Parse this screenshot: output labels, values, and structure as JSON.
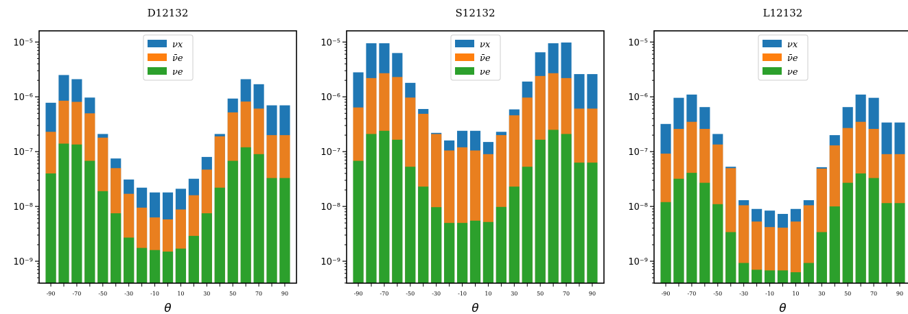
{
  "chart_data": [
    {
      "type": "bar",
      "title": "D12132",
      "xlabel": "θ",
      "ylabel": "",
      "yscale": "log",
      "ylim": [
        4e-10,
        1.6e-05
      ],
      "x": [
        -90,
        -80,
        -70,
        -60,
        -50,
        -40,
        -30,
        -20,
        -10,
        0,
        10,
        20,
        30,
        40,
        50,
        60,
        70,
        80,
        90
      ],
      "xtick_labels": [
        "-90",
        "-70",
        "-50",
        "-30",
        "-10",
        "10",
        "30",
        "50",
        "70",
        "90"
      ],
      "ytick_labels": [
        "10⁻⁹",
        "10⁻⁸",
        "10⁻⁷",
        "10⁻⁶",
        "10⁻⁵"
      ],
      "legend_position": "upper center",
      "series": [
        {
          "name": "νx",
          "color": "#1f77b4",
          "values": [
            7.8e-07,
            2.5e-06,
            2.1e-06,
            9.7e-07,
            2.1e-07,
            7.5e-08,
            3.1e-08,
            2.2e-08,
            1.8e-08,
            1.8e-08,
            2.1e-08,
            3.2e-08,
            8e-08,
            2.1e-07,
            9.3e-07,
            2.1e-06,
            1.7e-06,
            7e-07,
            7e-07
          ]
        },
        {
          "name": "ν̄e",
          "color": "#ff7f0e",
          "values": [
            2.3e-07,
            8.5e-07,
            8.1e-07,
            5e-07,
            1.8e-07,
            5e-08,
            1.7e-08,
            9.5e-09,
            6.3e-09,
            5.8e-09,
            8.8e-09,
            1.6e-08,
            4.7e-08,
            1.9e-07,
            5.2e-07,
            8.2e-07,
            6.1e-07,
            2e-07,
            2e-07
          ]
        },
        {
          "name": "νe",
          "color": "#2ca02c",
          "values": [
            4e-08,
            1.4e-07,
            1.35e-07,
            6.8e-08,
            1.9e-08,
            7.5e-09,
            2.7e-09,
            1.75e-09,
            1.6e-09,
            1.5e-09,
            1.7e-09,
            2.9e-09,
            7.5e-09,
            2.2e-08,
            6.8e-08,
            1.2e-07,
            9e-08,
            3.3e-08,
            3.3e-08
          ]
        }
      ]
    },
    {
      "type": "bar",
      "title": "S12132",
      "xlabel": "θ",
      "ylabel": "",
      "yscale": "log",
      "ylim": [
        4e-10,
        1.6e-05
      ],
      "x": [
        -90,
        -80,
        -70,
        -60,
        -50,
        -40,
        -30,
        -20,
        -10,
        0,
        10,
        20,
        30,
        40,
        50,
        60,
        70,
        80,
        90
      ],
      "xtick_labels": [
        "-90",
        "-70",
        "-50",
        "-30",
        "-10",
        "10",
        "30",
        "50",
        "70",
        "90"
      ],
      "ytick_labels": [
        "10⁻⁹",
        "10⁻⁸",
        "10⁻⁷",
        "10⁻⁶",
        "10⁻⁵"
      ],
      "legend_position": "upper center",
      "series": [
        {
          "name": "νx",
          "color": "#1f77b4",
          "values": [
            2.8e-06,
            9.5e-06,
            9.5e-06,
            6.3e-06,
            1.8e-06,
            6e-07,
            2.2e-07,
            1.6e-07,
            2.4e-07,
            2.4e-07,
            1.5e-07,
            2.3e-07,
            5.9e-07,
            1.9e-06,
            6.5e-06,
            9.5e-06,
            9.8e-06,
            2.6e-06,
            2.6e-06
          ]
        },
        {
          "name": "ν̄e",
          "color": "#ff7f0e",
          "values": [
            6.4e-07,
            2.2e-06,
            2.7e-06,
            2.3e-06,
            9.7e-07,
            4.9e-07,
            2.1e-07,
            1.05e-07,
            1.2e-07,
            1.05e-07,
            9e-08,
            2e-07,
            4.6e-07,
            9.7e-07,
            2.4e-06,
            2.7e-06,
            2.2e-06,
            6.1e-07,
            6.1e-07
          ]
        },
        {
          "name": "νe",
          "color": "#2ca02c",
          "values": [
            6.8e-08,
            2.1e-07,
            2.4e-07,
            1.65e-07,
            5.3e-08,
            2.3e-08,
            9.7e-09,
            5e-09,
            5e-09,
            5.5e-09,
            5.2e-09,
            9.8e-09,
            2.3e-08,
            5.3e-08,
            1.65e-07,
            2.5e-07,
            2.1e-07,
            6.3e-08,
            6.3e-08
          ]
        }
      ]
    },
    {
      "type": "bar",
      "title": "L12132",
      "xlabel": "θ",
      "ylabel": "",
      "yscale": "log",
      "ylim": [
        4e-10,
        1.6e-05
      ],
      "x": [
        -90,
        -80,
        -70,
        -60,
        -50,
        -40,
        -30,
        -20,
        -10,
        0,
        10,
        20,
        30,
        40,
        50,
        60,
        70,
        80,
        90
      ],
      "xtick_labels": [
        "-90",
        "-70",
        "-50",
        "-30",
        "-10",
        "10",
        "30",
        "50",
        "70",
        "90"
      ],
      "ytick_labels": [
        "10⁻⁹",
        "10⁻⁸",
        "10⁻⁷",
        "10⁻⁶",
        "10⁻⁵"
      ],
      "legend_position": "upper center",
      "series": [
        {
          "name": "νx",
          "color": "#1f77b4",
          "values": [
            3.2e-07,
            9.6e-07,
            1.1e-06,
            6.5e-07,
            2.1e-07,
            5.3e-08,
            1.3e-08,
            9e-09,
            8.4e-09,
            7.3e-09,
            9e-09,
            1.3e-08,
            5.2e-08,
            2e-07,
            6.5e-07,
            1.1e-06,
            9.6e-07,
            3.4e-07,
            3.4e-07
          ]
        },
        {
          "name": "ν̄e",
          "color": "#ff7f0e",
          "values": [
            9.2e-08,
            2.6e-07,
            3.5e-07,
            2.6e-07,
            1.35e-07,
            5e-08,
            1.05e-08,
            5.3e-09,
            4.2e-09,
            4.1e-09,
            5.3e-09,
            1.05e-08,
            4.9e-08,
            1.3e-07,
            2.7e-07,
            3.5e-07,
            2.6e-07,
            9e-08,
            9e-08
          ]
        },
        {
          "name": "νe",
          "color": "#2ca02c",
          "values": [
            1.2e-08,
            3.2e-08,
            4.1e-08,
            2.7e-08,
            1.1e-08,
            3.4e-09,
            9.3e-10,
            7e-10,
            6.8e-10,
            6.8e-10,
            6.3e-10,
            9.3e-10,
            3.4e-09,
            1e-08,
            2.7e-08,
            4e-08,
            3.3e-08,
            1.15e-08,
            1.15e-08
          ]
        }
      ]
    }
  ]
}
